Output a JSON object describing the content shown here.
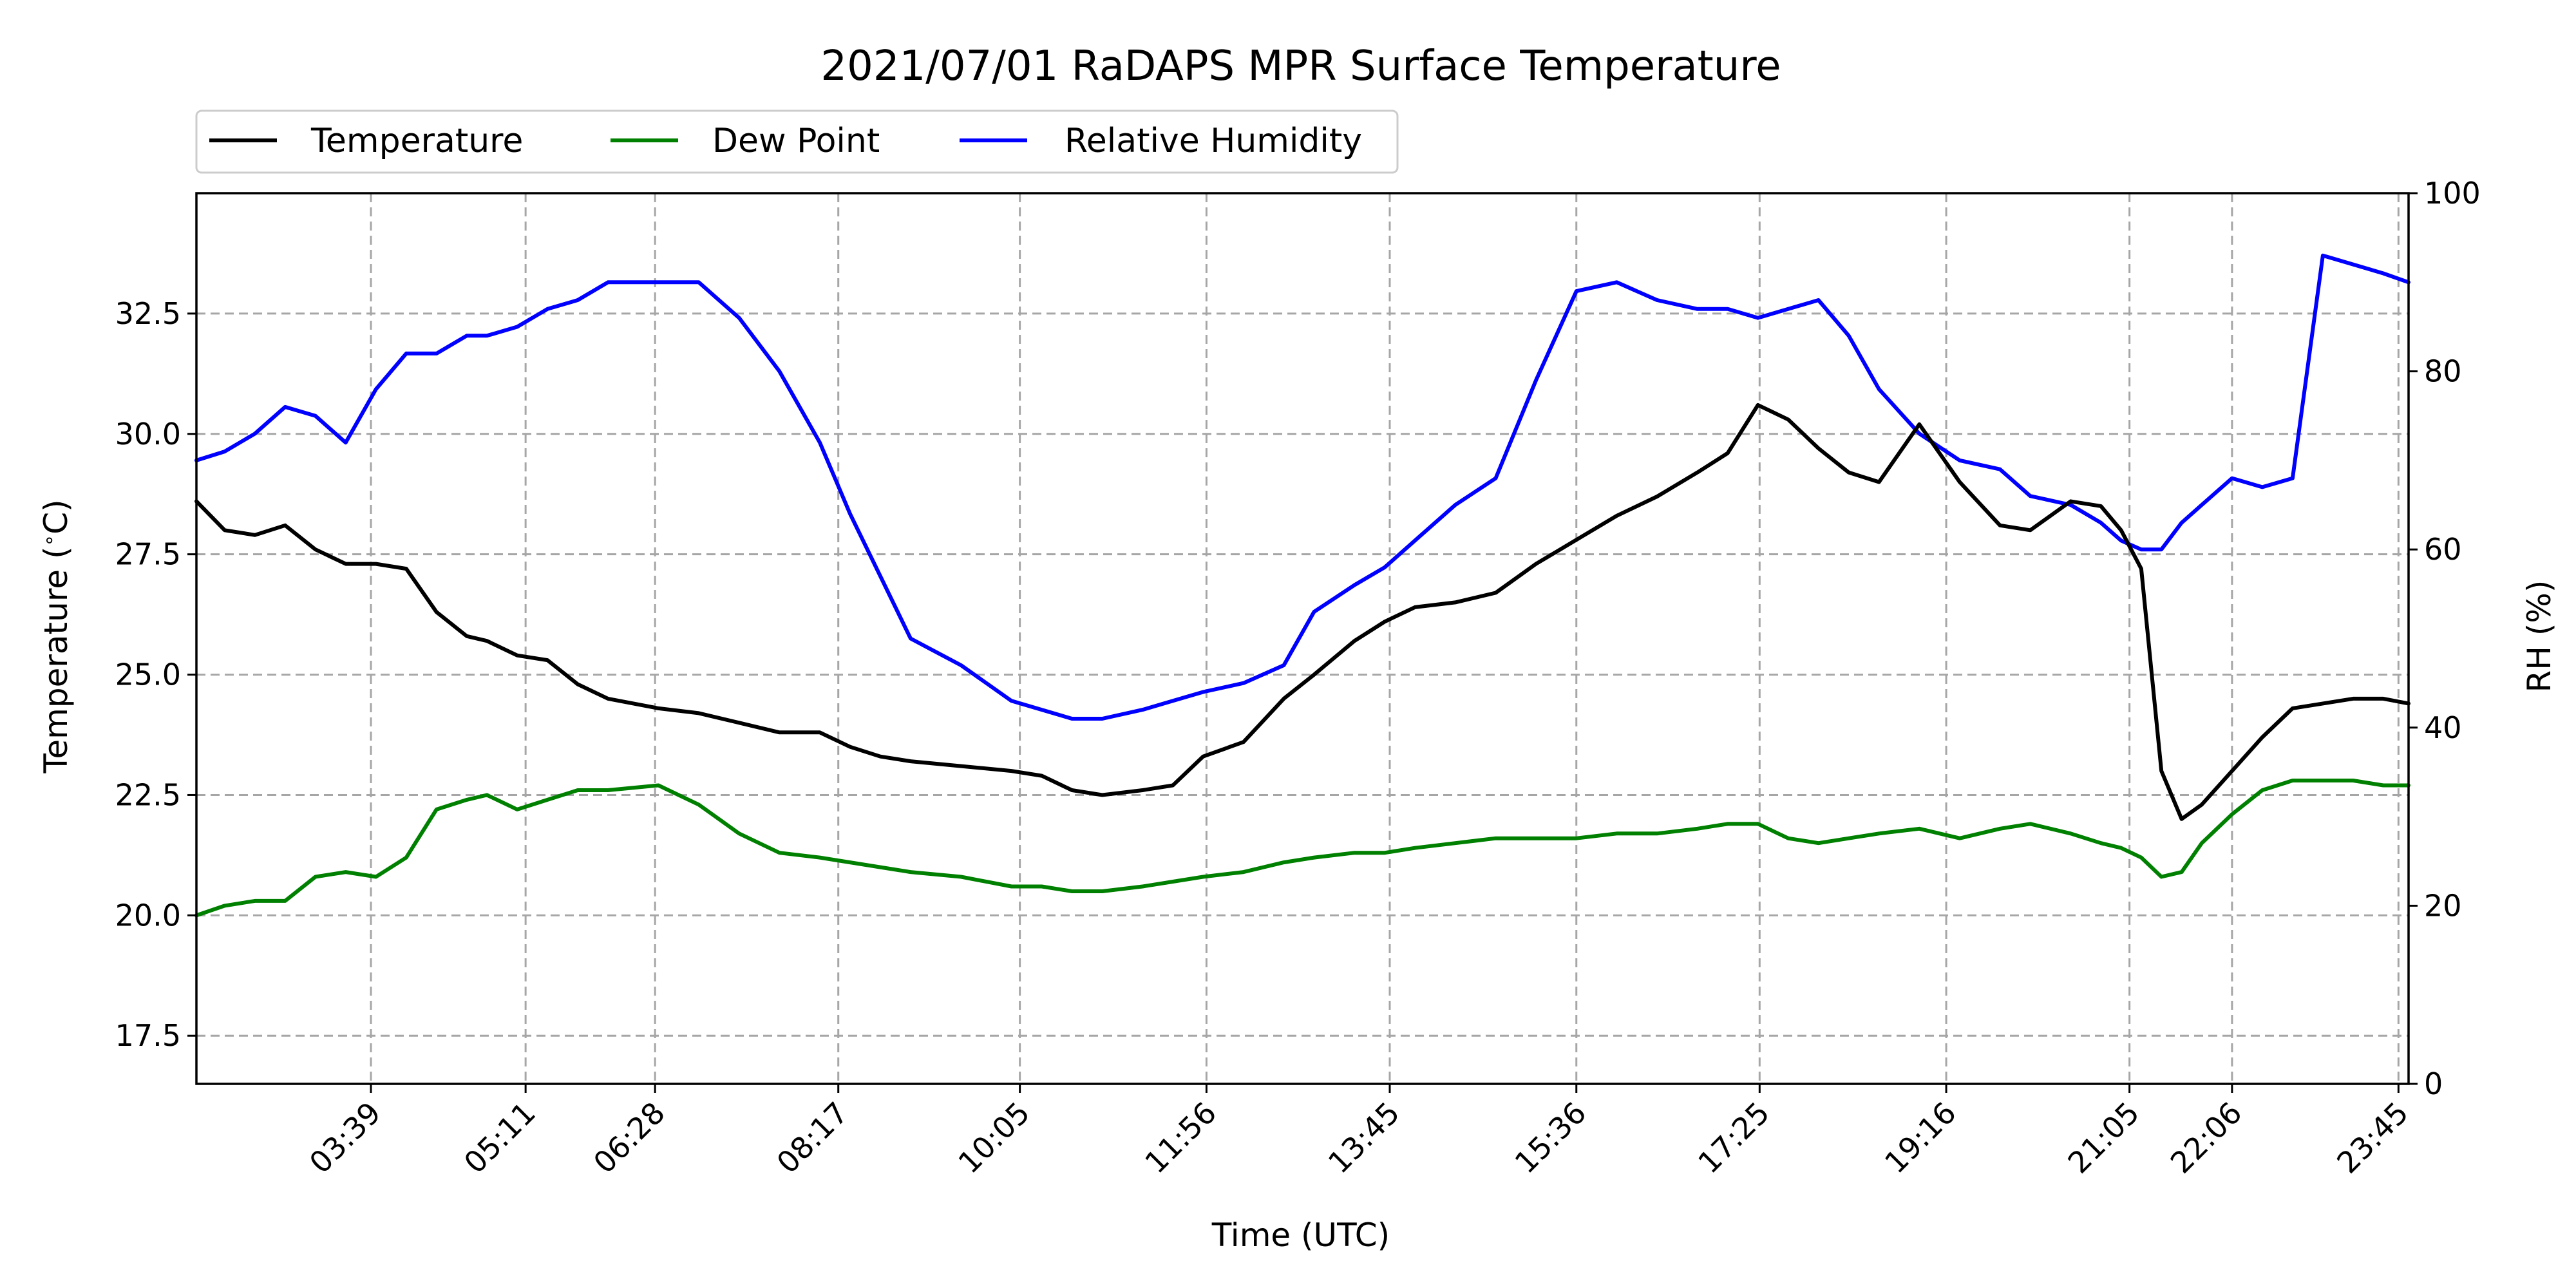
{
  "chart_data": {
    "type": "line",
    "title": "2021/07/01 RaDAPS MPR Surface Temperature",
    "xlabel": "Time (UTC)",
    "ylabel": "Temperature ($^\\circ$C)",
    "ylabel_display": "Temperature (",
    "ylabel_degree": "∘",
    "ylabel_unit": "C)",
    "y2label": "RH (%)",
    "x_unit": "hours (UTC)",
    "xlim": [
      1.92,
      23.85
    ],
    "ylim": [
      16.5,
      35.0
    ],
    "y2lim": [
      0,
      100
    ],
    "x_ticks": [
      {
        "value": 3.65,
        "label": "03:39"
      },
      {
        "value": 5.1833,
        "label": "05:11"
      },
      {
        "value": 6.4667,
        "label": "06:28"
      },
      {
        "value": 8.2833,
        "label": "08:17"
      },
      {
        "value": 10.0833,
        "label": "10:05"
      },
      {
        "value": 11.9333,
        "label": "11:56"
      },
      {
        "value": 13.75,
        "label": "13:45"
      },
      {
        "value": 15.6,
        "label": "15:36"
      },
      {
        "value": 17.4167,
        "label": "17:25"
      },
      {
        "value": 19.2667,
        "label": "19:16"
      },
      {
        "value": 21.0833,
        "label": "21:05"
      },
      {
        "value": 22.1,
        "label": "22:06"
      },
      {
        "value": 23.75,
        "label": "23:45"
      }
    ],
    "y_ticks": [
      {
        "value": 17.5,
        "label": "17.5"
      },
      {
        "value": 20.0,
        "label": "20.0"
      },
      {
        "value": 22.5,
        "label": "22.5"
      },
      {
        "value": 25.0,
        "label": "25.0"
      },
      {
        "value": 27.5,
        "label": "27.5"
      },
      {
        "value": 30.0,
        "label": "30.0"
      },
      {
        "value": 32.5,
        "label": "32.5"
      }
    ],
    "y2_ticks": [
      {
        "value": 0,
        "label": "0"
      },
      {
        "value": 20,
        "label": "20"
      },
      {
        "value": 40,
        "label": "40"
      },
      {
        "value": 60,
        "label": "60"
      },
      {
        "value": 80,
        "label": "80"
      },
      {
        "value": 100,
        "label": "100"
      }
    ],
    "grid": true,
    "legend": "top-left, outside axes, 3 columns",
    "series": [
      {
        "name": "Temperature",
        "color": "#000000",
        "axis": "left",
        "x": [
          1.92,
          2.2,
          2.5,
          2.8,
          3.1,
          3.4,
          3.7,
          4.0,
          4.3,
          4.6,
          4.8,
          5.1,
          5.4,
          5.7,
          6.0,
          6.5,
          6.9,
          7.3,
          7.7,
          8.1,
          8.4,
          8.7,
          9.0,
          9.5,
          10.0,
          10.3,
          10.6,
          10.9,
          11.3,
          11.6,
          11.9,
          12.3,
          12.7,
          13.0,
          13.4,
          13.7,
          14.0,
          14.4,
          14.8,
          15.2,
          15.6,
          16.0,
          16.4,
          16.8,
          17.1,
          17.4,
          17.7,
          18.0,
          18.3,
          18.6,
          19.0,
          19.4,
          19.8,
          20.1,
          20.5,
          20.8,
          21.0,
          21.2,
          21.4,
          21.6,
          21.8,
          22.1,
          22.4,
          22.7,
          23.0,
          23.3,
          23.6,
          23.85
        ],
        "y": [
          28.6,
          28.0,
          27.9,
          28.1,
          27.6,
          27.3,
          27.3,
          27.2,
          26.3,
          25.8,
          25.7,
          25.4,
          25.3,
          24.8,
          24.5,
          24.3,
          24.2,
          24.0,
          23.8,
          23.8,
          23.5,
          23.3,
          23.2,
          23.1,
          23.0,
          22.9,
          22.6,
          22.5,
          22.6,
          22.7,
          23.3,
          23.6,
          24.5,
          25.0,
          25.7,
          26.1,
          26.4,
          26.5,
          26.7,
          27.3,
          27.8,
          28.3,
          28.7,
          29.2,
          29.6,
          30.6,
          30.3,
          29.7,
          29.2,
          29.0,
          30.2,
          29.0,
          28.1,
          28.0,
          28.6,
          28.5,
          28.0,
          27.2,
          23.0,
          22.0,
          22.3,
          23.0,
          23.7,
          24.3,
          24.4,
          24.5,
          24.5,
          24.4
        ]
      },
      {
        "name": "Dew Point",
        "color": "#008000",
        "axis": "left",
        "x": [
          1.92,
          2.2,
          2.5,
          2.8,
          3.1,
          3.4,
          3.7,
          4.0,
          4.3,
          4.6,
          4.8,
          5.1,
          5.4,
          5.7,
          6.0,
          6.5,
          6.9,
          7.3,
          7.7,
          8.1,
          8.4,
          8.7,
          9.0,
          9.5,
          10.0,
          10.3,
          10.6,
          10.9,
          11.3,
          11.6,
          11.9,
          12.3,
          12.7,
          13.0,
          13.4,
          13.7,
          14.0,
          14.4,
          14.8,
          15.2,
          15.6,
          16.0,
          16.4,
          16.8,
          17.1,
          17.4,
          17.7,
          18.0,
          18.3,
          18.6,
          19.0,
          19.4,
          19.8,
          20.1,
          20.5,
          20.8,
          21.0,
          21.2,
          21.4,
          21.6,
          21.8,
          22.1,
          22.4,
          22.7,
          23.0,
          23.3,
          23.6,
          23.85
        ],
        "y": [
          20.0,
          20.2,
          20.3,
          20.3,
          20.8,
          20.9,
          20.8,
          21.2,
          22.2,
          22.4,
          22.5,
          22.2,
          22.4,
          22.6,
          22.6,
          22.7,
          22.3,
          21.7,
          21.3,
          21.2,
          21.1,
          21.0,
          20.9,
          20.8,
          20.6,
          20.6,
          20.5,
          20.5,
          20.6,
          20.7,
          20.8,
          20.9,
          21.1,
          21.2,
          21.3,
          21.3,
          21.4,
          21.5,
          21.6,
          21.6,
          21.6,
          21.7,
          21.7,
          21.8,
          21.9,
          21.9,
          21.6,
          21.5,
          21.6,
          21.7,
          21.8,
          21.6,
          21.8,
          21.9,
          21.7,
          21.5,
          21.4,
          21.2,
          20.8,
          20.9,
          21.5,
          22.1,
          22.6,
          22.8,
          22.8,
          22.8,
          22.7,
          22.7
        ]
      },
      {
        "name": "Relative Humidity",
        "color": "#0000ff",
        "axis": "right",
        "x": [
          1.92,
          2.2,
          2.5,
          2.8,
          3.1,
          3.4,
          3.7,
          4.0,
          4.3,
          4.6,
          4.8,
          5.1,
          5.4,
          5.7,
          6.0,
          6.5,
          6.9,
          7.3,
          7.7,
          8.1,
          8.4,
          8.7,
          9.0,
          9.5,
          10.0,
          10.3,
          10.6,
          10.9,
          11.3,
          11.6,
          11.9,
          12.3,
          12.7,
          13.0,
          13.4,
          13.7,
          14.0,
          14.4,
          14.8,
          15.2,
          15.6,
          16.0,
          16.4,
          16.8,
          17.1,
          17.4,
          17.7,
          18.0,
          18.3,
          18.6,
          19.0,
          19.4,
          19.8,
          20.1,
          20.5,
          20.8,
          21.0,
          21.2,
          21.4,
          21.6,
          21.8,
          22.1,
          22.4,
          22.7,
          23.0,
          23.3,
          23.6,
          23.85
        ],
        "y": [
          70,
          71,
          73,
          76,
          75,
          72,
          78,
          82,
          82,
          84,
          84,
          85,
          87,
          88,
          90,
          90,
          90,
          86,
          80,
          72,
          64,
          57,
          50,
          47,
          43,
          42,
          41,
          41,
          42,
          43,
          44,
          45,
          47,
          53,
          56,
          58,
          61,
          65,
          68,
          79,
          89,
          90,
          88,
          87,
          87,
          86,
          87,
          88,
          84,
          78,
          73,
          70,
          69,
          66,
          65,
          63,
          61,
          60,
          60,
          63,
          65,
          68,
          67,
          68,
          93,
          92,
          91,
          90
        ]
      }
    ]
  }
}
